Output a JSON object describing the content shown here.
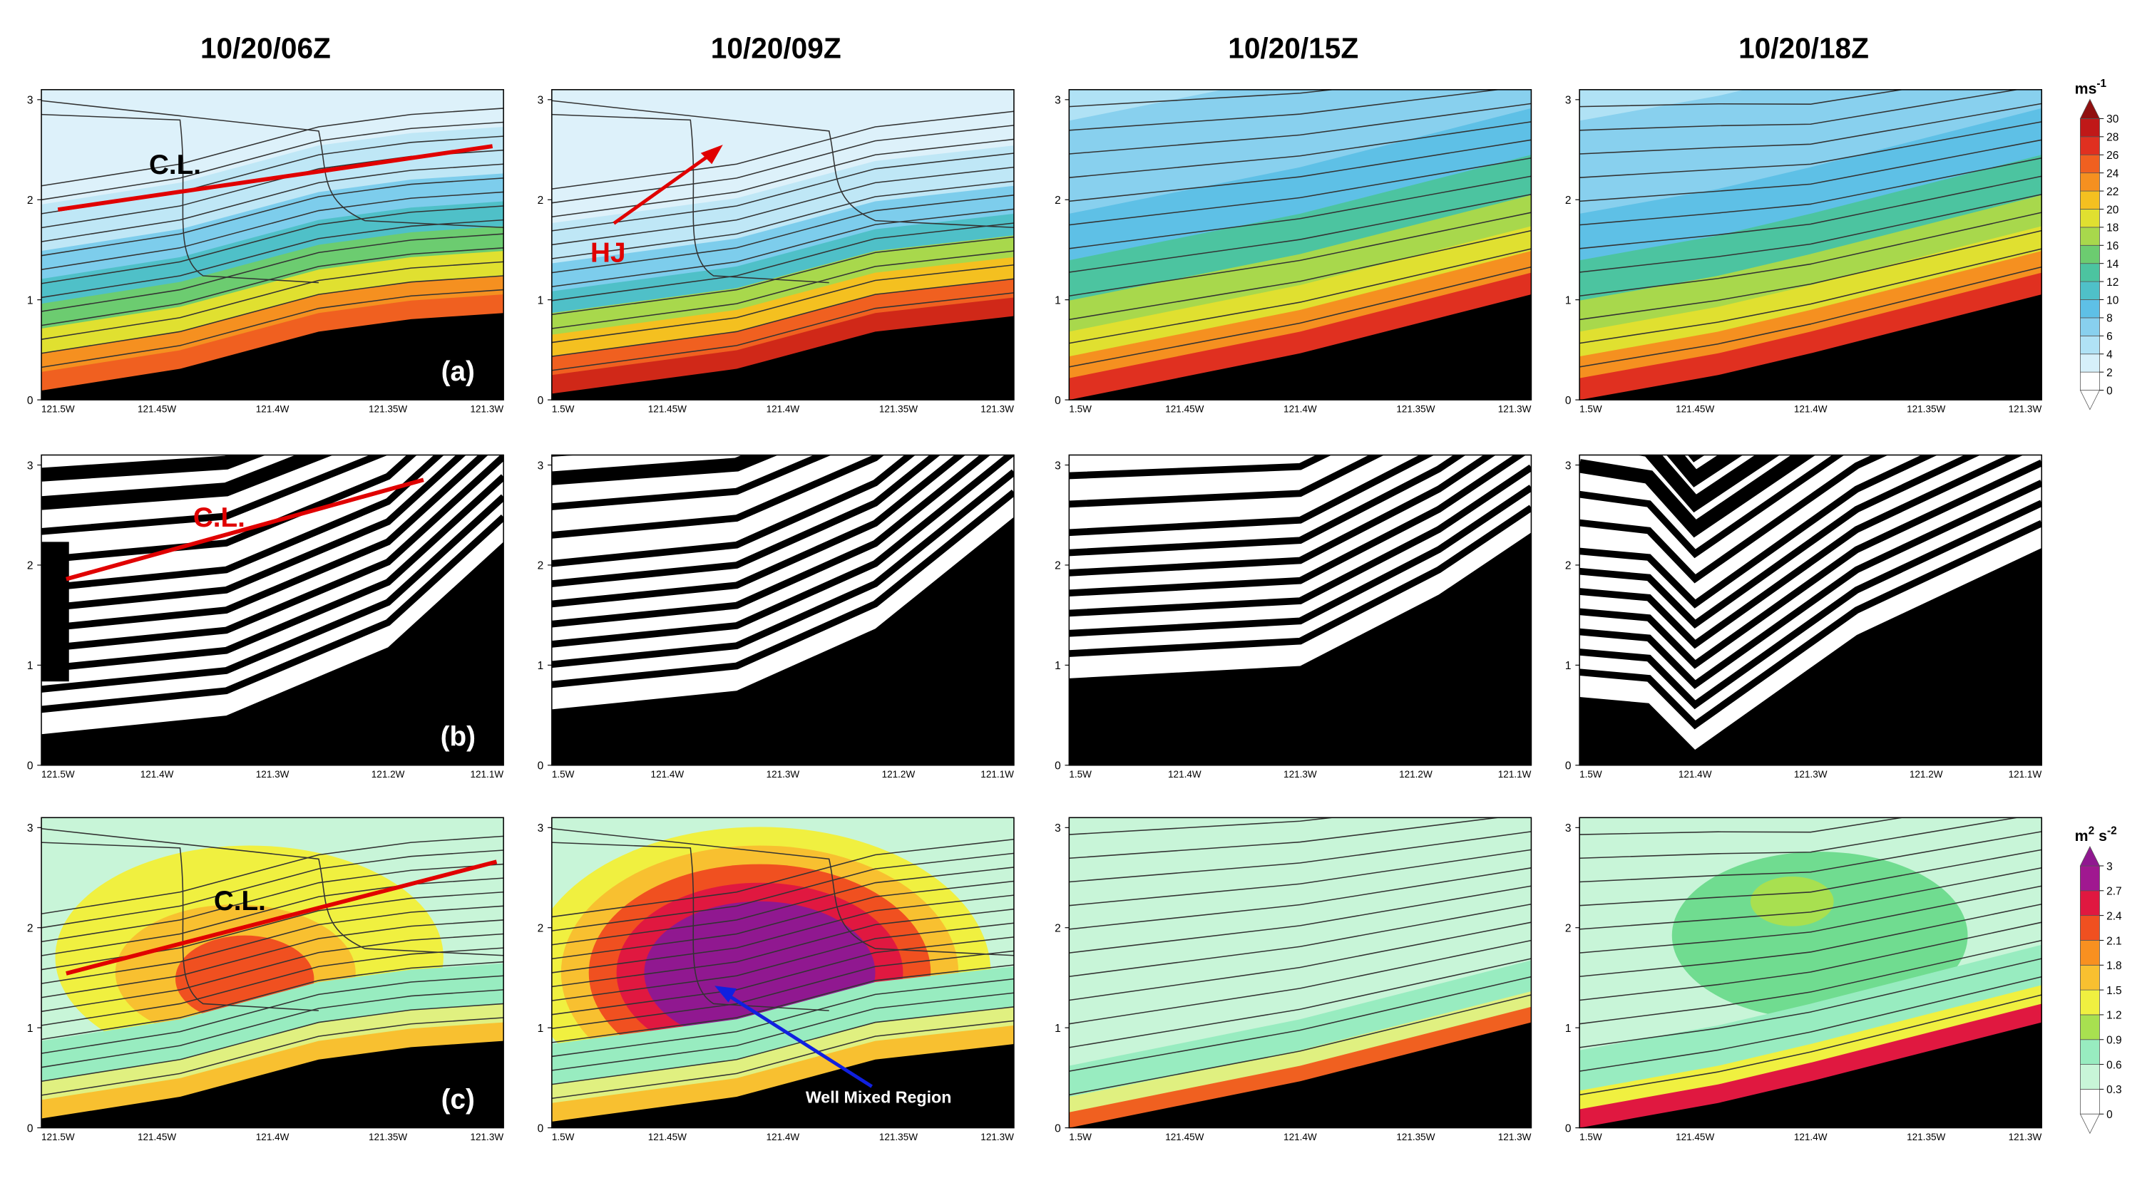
{
  "titles": [
    "10/20/06Z",
    "10/20/09Z",
    "10/20/15Z",
    "10/20/18Z"
  ],
  "rows": [
    {
      "label": "(a)",
      "ylim": [
        0,
        3.1
      ],
      "yticks": [
        0,
        1,
        2,
        3
      ],
      "xticks": [
        [
          "121.5W",
          "121.45W",
          "121.4W",
          "121.35W",
          "121.3W"
        ],
        [
          "1.5W",
          "121.45W",
          "121.4W",
          "121.35W",
          "121.3W"
        ],
        [
          "1.5W",
          "121.45W",
          "121.4W",
          "121.35W",
          "121.3W"
        ],
        [
          "1.5W",
          "121.45W",
          "121.4W",
          "121.35W",
          "121.3W"
        ]
      ]
    },
    {
      "label": "(b)",
      "ylim": [
        0,
        3.1
      ],
      "yticks": [
        0,
        1,
        2,
        3
      ],
      "xticks": [
        [
          "121.5W",
          "121.4W",
          "121.3W",
          "121.2W",
          "121.1W"
        ],
        [
          "1.5W",
          "121.4W",
          "121.3W",
          "121.2W",
          "121.1W"
        ],
        [
          "1.5W",
          "121.4W",
          "121.3W",
          "121.2W",
          "121.1W"
        ],
        [
          "1.5W",
          "121.4W",
          "121.3W",
          "121.2W",
          "121.1W"
        ]
      ]
    },
    {
      "label": "(c)",
      "ylim": [
        0,
        3.1
      ],
      "yticks": [
        0,
        1,
        2,
        3
      ],
      "xticks": [
        [
          "121.5W",
          "121.45W",
          "121.4W",
          "121.35W",
          "121.3W"
        ],
        [
          "1.5W",
          "121.45W",
          "121.4W",
          "121.35W",
          "121.3W"
        ],
        [
          "1.5W",
          "121.45W",
          "121.4W",
          "121.35W",
          "121.3W"
        ],
        [
          "1.5W",
          "121.45W",
          "121.4W",
          "121.35W",
          "121.3W"
        ]
      ]
    }
  ],
  "colorbars": [
    {
      "unit": [
        "ms",
        "-1"
      ],
      "ticks": [
        0,
        2,
        4,
        6,
        8,
        10,
        12,
        14,
        16,
        18,
        20,
        22,
        24,
        26,
        28,
        30
      ],
      "colors": [
        "#ffffff",
        "#d6f0fa",
        "#b0e2f5",
        "#88d0ee",
        "#5ec0e6",
        "#4fc0c8",
        "#4cc4a0",
        "#6ccc70",
        "#a8d84c",
        "#e0e030",
        "#f4c020",
        "#f59020",
        "#f06020",
        "#e03020",
        "#c01818"
      ],
      "over": "#901010"
    },
    {
      "unit": [
        "m",
        "2",
        " s",
        "-2"
      ],
      "ticks": [
        0,
        0.3,
        0.6,
        0.9,
        1.2,
        1.5,
        1.8,
        2.1,
        2.4,
        2.7,
        3
      ],
      "colors": [
        "#ffffff",
        "#c8f5d8",
        "#98ecc0",
        "#a8e050",
        "#f0f040",
        "#f8c030",
        "#f89020",
        "#f05020",
        "#e01840",
        "#a01890"
      ],
      "over": "#901890"
    }
  ],
  "annotations": {
    "cl": "C.L.",
    "hj": "HJ",
    "well_mixed": "Well Mixed Region"
  }
}
